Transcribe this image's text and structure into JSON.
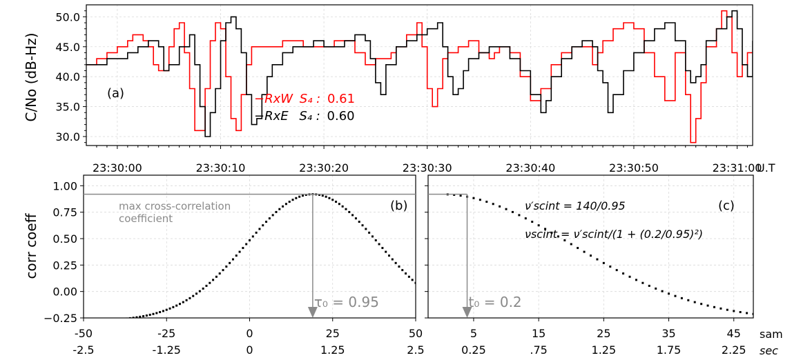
{
  "chart_data": [
    {
      "type": "line",
      "panel_label": "(a)",
      "ylabel": "C/No (dB-Hz)",
      "x_unit_label": "U.T",
      "ylim": [
        28.5,
        52
      ],
      "xlim_seconds_after_23_30_00": [
        -3,
        61.5
      ],
      "x_ticks": [
        "23:30:00",
        "23:30:10",
        "23:30:20",
        "23:30:30",
        "23:30:40",
        "23:30:50",
        "23:31:00"
      ],
      "y_ticks": [
        "30.0",
        "35.0",
        "40.0",
        "45.0",
        "50.0"
      ],
      "grid": true,
      "legend": [
        {
          "name": "−RxW",
          "stat": "S₄ :",
          "value": "0.61",
          "color": "#ff0000"
        },
        {
          "name": "−RxE",
          "stat": "S₄ :",
          "value": "0.60",
          "color": "#000000"
        }
      ],
      "series": [
        {
          "name": "RxW",
          "color": "#ff0000",
          "points": [
            [
              -3,
              42
            ],
            [
              -2,
              43
            ],
            [
              -1,
              44
            ],
            [
              0,
              45
            ],
            [
              1,
              46
            ],
            [
              1.5,
              47
            ],
            [
              2.5,
              46
            ],
            [
              3,
              45
            ],
            [
              3.5,
              42
            ],
            [
              4,
              41
            ],
            [
              5,
              45
            ],
            [
              5.5,
              48
            ],
            [
              6,
              49
            ],
            [
              6.5,
              44
            ],
            [
              7,
              38
            ],
            [
              7.5,
              31
            ],
            [
              8,
              31
            ],
            [
              8.5,
              38
            ],
            [
              9,
              46
            ],
            [
              9.5,
              49
            ],
            [
              10,
              48
            ],
            [
              10.5,
              40
            ],
            [
              11,
              33
            ],
            [
              11.5,
              31
            ],
            [
              12,
              37
            ],
            [
              12.5,
              42
            ],
            [
              13,
              45
            ],
            [
              15,
              45
            ],
            [
              16,
              46
            ],
            [
              17,
              46
            ],
            [
              18,
              45
            ],
            [
              19,
              45
            ],
            [
              20,
              45
            ],
            [
              21,
              46
            ],
            [
              22,
              46
            ],
            [
              23,
              44
            ],
            [
              24,
              42
            ],
            [
              25,
              43
            ],
            [
              26,
              43
            ],
            [
              26.5,
              44
            ],
            [
              27,
              45
            ],
            [
              28,
              47
            ],
            [
              29,
              49
            ],
            [
              29.5,
              45
            ],
            [
              30,
              38
            ],
            [
              30.5,
              35
            ],
            [
              31,
              38
            ],
            [
              31.5,
              43
            ],
            [
              32,
              44
            ],
            [
              33,
              45
            ],
            [
              34,
              46
            ],
            [
              35,
              44
            ],
            [
              36,
              43
            ],
            [
              36.5,
              44
            ],
            [
              37,
              45
            ],
            [
              38,
              44
            ],
            [
              39,
              40
            ],
            [
              40,
              36
            ],
            [
              41,
              38
            ],
            [
              42,
              42
            ],
            [
              43,
              44
            ],
            [
              44,
              45
            ],
            [
              45,
              45
            ],
            [
              46,
              42
            ],
            [
              46.5,
              44
            ],
            [
              47,
              46
            ],
            [
              48,
              48
            ],
            [
              49,
              49
            ],
            [
              50,
              48
            ],
            [
              51,
              44
            ],
            [
              52,
              40
            ],
            [
              53,
              36
            ],
            [
              54,
              44
            ],
            [
              55,
              37
            ],
            [
              55.5,
              29
            ],
            [
              56,
              33
            ],
            [
              56.5,
              39
            ],
            [
              57,
              45
            ],
            [
              58,
              48
            ],
            [
              58.5,
              51
            ],
            [
              59,
              50
            ],
            [
              59.5,
              44
            ],
            [
              60,
              40
            ],
            [
              60.5,
              42
            ],
            [
              61,
              44
            ],
            [
              61.5,
              44
            ]
          ]
        },
        {
          "name": "RxE",
          "color": "#000000",
          "points": [
            [
              -3,
              42
            ],
            [
              -2,
              42
            ],
            [
              -1,
              43
            ],
            [
              0,
              43
            ],
            [
              1,
              44
            ],
            [
              2,
              45
            ],
            [
              3,
              46
            ],
            [
              4,
              45
            ],
            [
              4.5,
              41
            ],
            [
              5,
              42
            ],
            [
              6,
              45
            ],
            [
              7,
              47
            ],
            [
              7.5,
              42
            ],
            [
              8,
              35
            ],
            [
              8.5,
              30
            ],
            [
              9,
              34
            ],
            [
              9.5,
              38
            ],
            [
              10,
              46
            ],
            [
              10.5,
              49
            ],
            [
              11,
              50
            ],
            [
              11.5,
              48
            ],
            [
              12,
              44
            ],
            [
              12.5,
              37
            ],
            [
              13,
              32
            ],
            [
              13.5,
              33
            ],
            [
              14,
              37
            ],
            [
              14.5,
              40
            ],
            [
              15,
              42
            ],
            [
              16,
              44
            ],
            [
              17,
              45
            ],
            [
              18,
              45
            ],
            [
              19,
              46
            ],
            [
              20,
              45
            ],
            [
              21,
              45
            ],
            [
              22,
              46
            ],
            [
              23,
              47
            ],
            [
              24,
              46
            ],
            [
              24.5,
              43
            ],
            [
              25,
              39
            ],
            [
              25.5,
              37
            ],
            [
              26,
              42
            ],
            [
              27,
              45
            ],
            [
              28,
              46
            ],
            [
              29,
              47
            ],
            [
              30,
              48
            ],
            [
              31,
              49
            ],
            [
              31.5,
              45
            ],
            [
              32,
              40
            ],
            [
              32.5,
              37
            ],
            [
              33,
              38
            ],
            [
              33.5,
              41
            ],
            [
              34,
              43
            ],
            [
              35,
              44
            ],
            [
              36,
              45
            ],
            [
              37,
              45
            ],
            [
              38,
              43
            ],
            [
              39,
              41
            ],
            [
              40,
              37
            ],
            [
              41,
              34
            ],
            [
              41.5,
              36
            ],
            [
              42,
              40
            ],
            [
              43,
              43
            ],
            [
              44,
              45
            ],
            [
              45,
              46
            ],
            [
              46,
              45
            ],
            [
              46.5,
              41
            ],
            [
              47,
              39
            ],
            [
              47.5,
              34
            ],
            [
              48,
              37
            ],
            [
              49,
              41
            ],
            [
              50,
              44
            ],
            [
              51,
              46
            ],
            [
              52,
              48
            ],
            [
              53,
              49
            ],
            [
              54,
              46
            ],
            [
              55,
              41
            ],
            [
              55.5,
              39
            ],
            [
              56,
              40
            ],
            [
              56.5,
              42
            ],
            [
              57,
              46
            ],
            [
              58,
              48
            ],
            [
              59,
              50
            ],
            [
              59.5,
              51
            ],
            [
              60,
              48
            ],
            [
              60.5,
              42
            ],
            [
              61,
              40
            ],
            [
              61.5,
              46
            ]
          ]
        }
      ]
    },
    {
      "type": "scatter",
      "panel_label": "(b)",
      "ylabel": "corr coeff",
      "xlim": [
        -50,
        50
      ],
      "ylim": [
        -0.25,
        1.1
      ],
      "x_ticks_sam": [
        "-50",
        "-25",
        "0",
        "25",
        "50"
      ],
      "x_ticks_sec": [
        "-2.5",
        "-1.25",
        "0",
        "1.25",
        "2.5"
      ],
      "y_ticks": [
        "−0.25",
        "0.00",
        "0.25",
        "0.50",
        "0.75",
        "1.00"
      ],
      "grid": true,
      "peak": {
        "x": 19,
        "y": 0.92
      },
      "curve": {
        "amplitude": 1.2,
        "center": 19,
        "sigma": 20,
        "offset": -0.28
      },
      "x_range": [
        -50,
        50
      ],
      "annotation": "max cross-correlation\ncoefficient",
      "arrow_label": "τ₀ = 0.95"
    },
    {
      "type": "scatter",
      "panel_label": "(c)",
      "xlim": [
        -2,
        48
      ],
      "ylim": [
        -0.25,
        1.1
      ],
      "x_ticks_sam": [
        "5",
        "15",
        "25",
        "35",
        "45"
      ],
      "x_ticks_sec": [
        "0.25",
        ".75",
        "1.25",
        "1.75",
        "2.25"
      ],
      "x_axis_names": [
        "sam",
        "sec"
      ],
      "grid": true,
      "curve": {
        "amplitude": 1.2,
        "center": 0,
        "sigma": 20,
        "offset": -0.28
      },
      "x_range": [
        1,
        48
      ],
      "marker": {
        "x": 4,
        "y": 0.92
      },
      "arrow_label": "t₀ = 0.2",
      "formula_1": "ν′scint = 140/0.95",
      "formula_2": "νscint = ν′scint/(1 + (0.2/0.95)²)"
    }
  ]
}
